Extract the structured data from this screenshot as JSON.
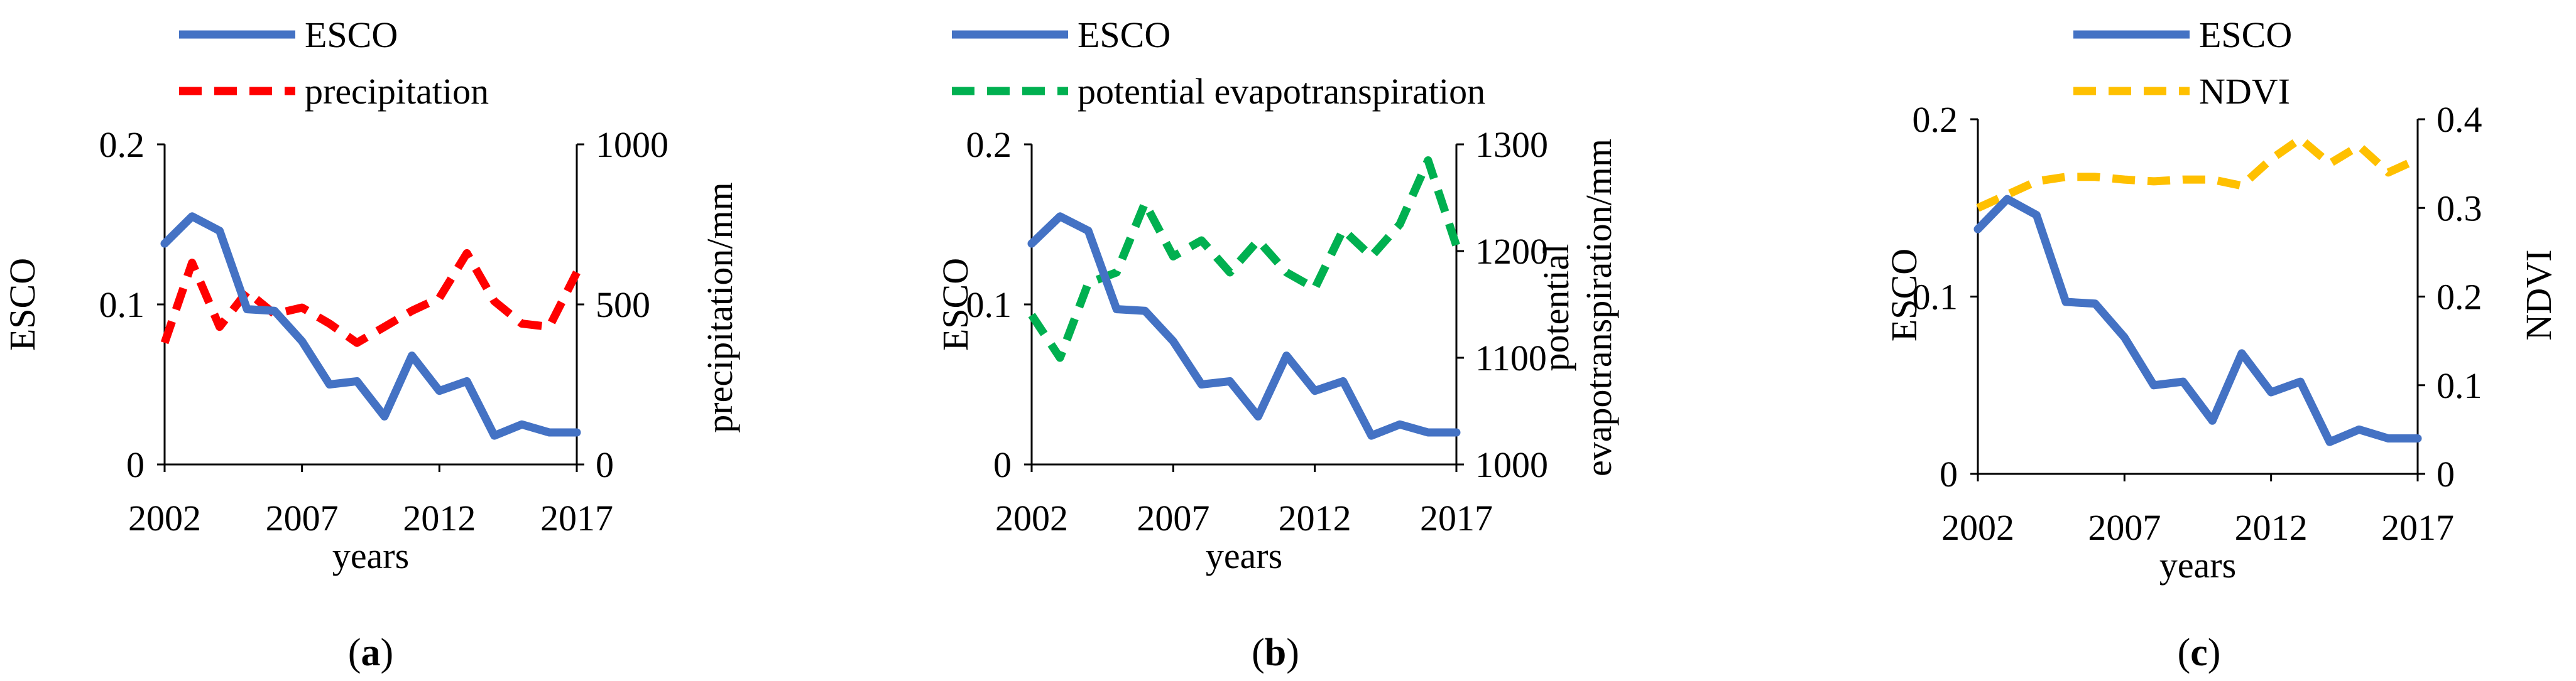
{
  "chart_data": [
    {
      "type": "line",
      "caption": "a",
      "x": [
        2002,
        2003,
        2004,
        2005,
        2006,
        2007,
        2008,
        2009,
        2010,
        2011,
        2012,
        2013,
        2014,
        2015,
        2016,
        2017
      ],
      "xticks": [
        "2002",
        "2007",
        "2012",
        "2017"
      ],
      "xlabel": "years",
      "ylabel": "ESCO",
      "ylim": [
        0,
        0.2
      ],
      "yticks": [
        "0",
        "0.1",
        "0.2"
      ],
      "y2label": "precipitation/mm",
      "y2lim": [
        0,
        1000
      ],
      "y2ticks": [
        "0",
        "500",
        "1000"
      ],
      "series": [
        {
          "name": "ESCO",
          "axis": "left",
          "color": "#4472C4",
          "dash": false,
          "values": [
            0.138,
            0.155,
            0.146,
            0.097,
            0.096,
            0.077,
            0.05,
            0.052,
            0.03,
            0.068,
            0.046,
            0.052,
            0.018,
            0.025,
            0.02,
            0.02
          ]
        },
        {
          "name": "precipitation",
          "axis": "right",
          "color": "#FF0000",
          "dash": true,
          "values": [
            380,
            630,
            430,
            540,
            470,
            490,
            440,
            380,
            430,
            480,
            520,
            660,
            510,
            440,
            430,
            600
          ]
        }
      ]
    },
    {
      "type": "line",
      "caption": "b",
      "x": [
        2002,
        2003,
        2004,
        2005,
        2006,
        2007,
        2008,
        2009,
        2010,
        2011,
        2012,
        2013,
        2014,
        2015,
        2016,
        2017
      ],
      "xticks": [
        "2002",
        "2007",
        "2012",
        "2017"
      ],
      "xlabel": "years",
      "ylabel": "ESCO",
      "ylim": [
        0,
        0.2
      ],
      "yticks": [
        "0",
        "0.1",
        "0.2"
      ],
      "y2label": [
        "potential",
        "evapotranspiration/mm"
      ],
      "y2lim": [
        1000,
        1300
      ],
      "y2ticks": [
        "1000",
        "1100",
        "1200",
        "1300"
      ],
      "series": [
        {
          "name": "ESCO",
          "axis": "left",
          "color": "#4472C4",
          "dash": false,
          "values": [
            0.138,
            0.155,
            0.146,
            0.097,
            0.096,
            0.077,
            0.05,
            0.052,
            0.03,
            0.068,
            0.046,
            0.052,
            0.018,
            0.025,
            0.02,
            0.02
          ]
        },
        {
          "name": "potential evapotranspiration",
          "axis": "right",
          "color": "#00B050",
          "dash": true,
          "values": [
            1140,
            1100,
            1170,
            1180,
            1245,
            1195,
            1210,
            1180,
            1210,
            1180,
            1165,
            1220,
            1195,
            1225,
            1285,
            1205
          ]
        }
      ]
    },
    {
      "type": "line",
      "caption": "c",
      "x": [
        2002,
        2003,
        2004,
        2005,
        2006,
        2007,
        2008,
        2009,
        2010,
        2011,
        2012,
        2013,
        2014,
        2015,
        2016,
        2017
      ],
      "xticks": [
        "2002",
        "2007",
        "2012",
        "2017"
      ],
      "xlabel": "years",
      "ylabel": "ESCO",
      "ylim": [
        0,
        0.2
      ],
      "yticks": [
        "0",
        "0.1",
        "0.2"
      ],
      "y2label": "NDVI",
      "y2lim": [
        0,
        0.4
      ],
      "y2ticks": [
        "0",
        "0.1",
        "0.2",
        "0.3",
        "0.4"
      ],
      "series": [
        {
          "name": "ESCO",
          "axis": "left",
          "color": "#4472C4",
          "dash": false,
          "values": [
            0.138,
            0.155,
            0.146,
            0.097,
            0.096,
            0.077,
            0.05,
            0.052,
            0.03,
            0.068,
            0.046,
            0.052,
            0.018,
            0.025,
            0.02,
            0.02
          ]
        },
        {
          "name": "NDVI",
          "axis": "right",
          "color": "#FFC000",
          "dash": true,
          "values": [
            0.3,
            0.315,
            0.33,
            0.335,
            0.335,
            0.332,
            0.33,
            0.332,
            0.332,
            0.325,
            0.355,
            0.378,
            0.35,
            0.37,
            0.34,
            0.355
          ]
        }
      ]
    }
  ]
}
